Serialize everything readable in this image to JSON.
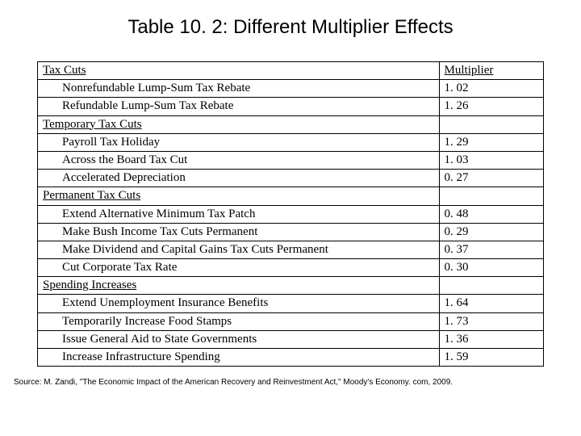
{
  "title": "Table 10. 2: Different Multiplier Effects",
  "header": {
    "label": "Tax Cuts",
    "value": "Multiplier"
  },
  "rows": [
    {
      "label": "Nonrefundable Lump-Sum Tax Rebate",
      "value": "1. 02",
      "indent": true
    },
    {
      "label": "Refundable Lump-Sum Tax Rebate",
      "value": "1. 26",
      "indent": true
    },
    {
      "label": "Temporary Tax Cuts",
      "value": "",
      "underline": true
    },
    {
      "label": "Payroll Tax Holiday",
      "value": "1. 29",
      "indent": true
    },
    {
      "label": "Across the Board Tax Cut",
      "value": "1. 03",
      "indent": true
    },
    {
      "label": "Accelerated Depreciation",
      "value": "0. 27",
      "indent": true
    },
    {
      "label": "Permanent Tax Cuts",
      "value": "",
      "underline": true
    },
    {
      "label": "Extend Alternative Minimum Tax Patch",
      "value": "0. 48",
      "indent": true
    },
    {
      "label": "Make Bush Income Tax Cuts Permanent",
      "value": "0. 29",
      "indent": true
    },
    {
      "label": "Make Dividend and Capital Gains Tax Cuts Permanent",
      "value": "0. 37",
      "indent": true
    },
    {
      "label": "Cut Corporate Tax Rate",
      "value": "0. 30",
      "indent": true
    },
    {
      "label": "Spending Increases",
      "value": "",
      "underline": true
    },
    {
      "label": "Extend Unemployment Insurance Benefits",
      "value": "1. 64",
      "indent": true
    },
    {
      "label": "Temporarily Increase Food Stamps",
      "value": "1. 73",
      "indent": true
    },
    {
      "label": "Issue General Aid to State Governments",
      "value": "1. 36",
      "indent": true
    },
    {
      "label": "Increase Infrastructure Spending",
      "value": "1. 59",
      "indent": true
    }
  ],
  "source": "Source: M. Zandi, \"The Economic Impact of the American Recovery and Reinvestment Act,\" Moody's Economy. com, 2009."
}
